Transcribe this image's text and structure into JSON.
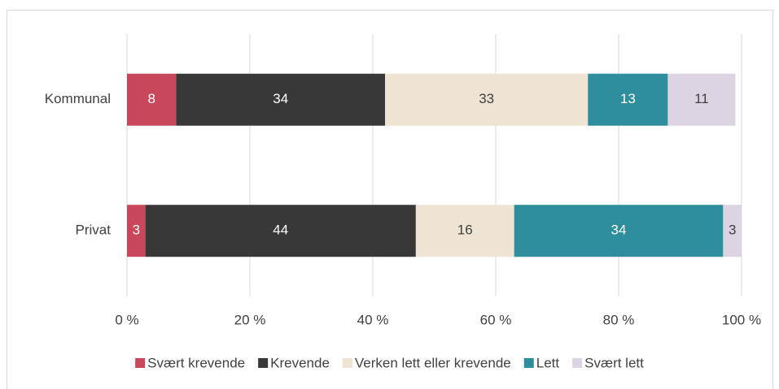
{
  "chart_data": {
    "type": "bar_stacked_horizontal",
    "categories": [
      "Kommunal",
      "Privat"
    ],
    "series": [
      {
        "name": "Svært krevende",
        "color": "#c8475a",
        "values": [
          8,
          3
        ]
      },
      {
        "name": "Krevende",
        "color": "#383838",
        "values": [
          34,
          44
        ]
      },
      {
        "name": "Verken lett eller krevende",
        "color": "#efe3d3",
        "values": [
          33,
          16
        ]
      },
      {
        "name": "Lett",
        "color": "#2e8e9e",
        "values": [
          13,
          34
        ]
      },
      {
        "name": "Svært lett",
        "color": "#dcd3e3",
        "values": [
          11,
          3
        ]
      }
    ],
    "xlim": [
      0,
      100
    ],
    "xticks": [
      {
        "value": 0,
        "label": "0 %"
      },
      {
        "value": 20,
        "label": "20 %"
      },
      {
        "value": 40,
        "label": "40 %"
      },
      {
        "value": 60,
        "label": "60 %"
      },
      {
        "value": 80,
        "label": "80 %"
      },
      {
        "value": 100,
        "label": "100 %"
      }
    ],
    "grid": true,
    "legend": "bottom"
  }
}
